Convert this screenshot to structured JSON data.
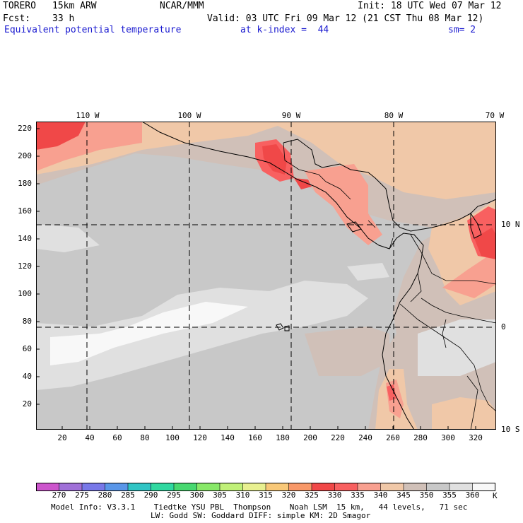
{
  "header": {
    "model": "TORERO",
    "resolution": "15km ARW",
    "center": "NCAR/MMM",
    "init": "Init: 18 UTC Wed 07 Mar 12",
    "fcst_label": "Fcst:",
    "fcst_value": "33 h",
    "valid": "Valid: 03 UTC Fri 09 Mar 12 (21 CST Thu 08 Mar 12)",
    "field": "Equivalent potential temperature",
    "level": "at k-index =  44",
    "smoothing": "sm= 2"
  },
  "axes": {
    "y_ticks": [
      "220",
      "200",
      "180",
      "160",
      "140",
      "120",
      "100",
      "80",
      "60",
      "40",
      "20"
    ],
    "x_ticks": [
      "20",
      "40",
      "60",
      "80",
      "100",
      "120",
      "140",
      "160",
      "180",
      "200",
      "220",
      "240",
      "260",
      "280",
      "300",
      "320"
    ],
    "lon_labels": [
      "110 W",
      "100 W",
      "90 W",
      "80 W",
      "70 W"
    ],
    "lat_labels": [
      "10 N",
      "0",
      "10 S"
    ]
  },
  "colorbar": {
    "labels": [
      "270",
      "275",
      "280",
      "285",
      "290",
      "295",
      "300",
      "305",
      "310",
      "315",
      "320",
      "325",
      "330",
      "335",
      "340",
      "345",
      "350",
      "355",
      "360"
    ],
    "unit": "K",
    "colors": [
      "#cc55cc",
      "#a070d8",
      "#7878e8",
      "#5a96e8",
      "#30c4c4",
      "#30d8a0",
      "#48d870",
      "#88e868",
      "#c0f078",
      "#e8f090",
      "#f8c878",
      "#f89868",
      "#f04848",
      "#f86060",
      "#f8a090",
      "#f0c8a8",
      "#d0c0b8",
      "#c8c8c8",
      "#e0e0e0",
      "#f8f8f8"
    ]
  },
  "footer": {
    "line1": "Model Info: V3.3.1    Tiedtke YSU PBL  Thompson    Noah LSM  15 km,   44 levels,   71 sec",
    "line2": "LW: Godd SW: Goddard DIFF: simple KM: 2D Smagor"
  }
}
